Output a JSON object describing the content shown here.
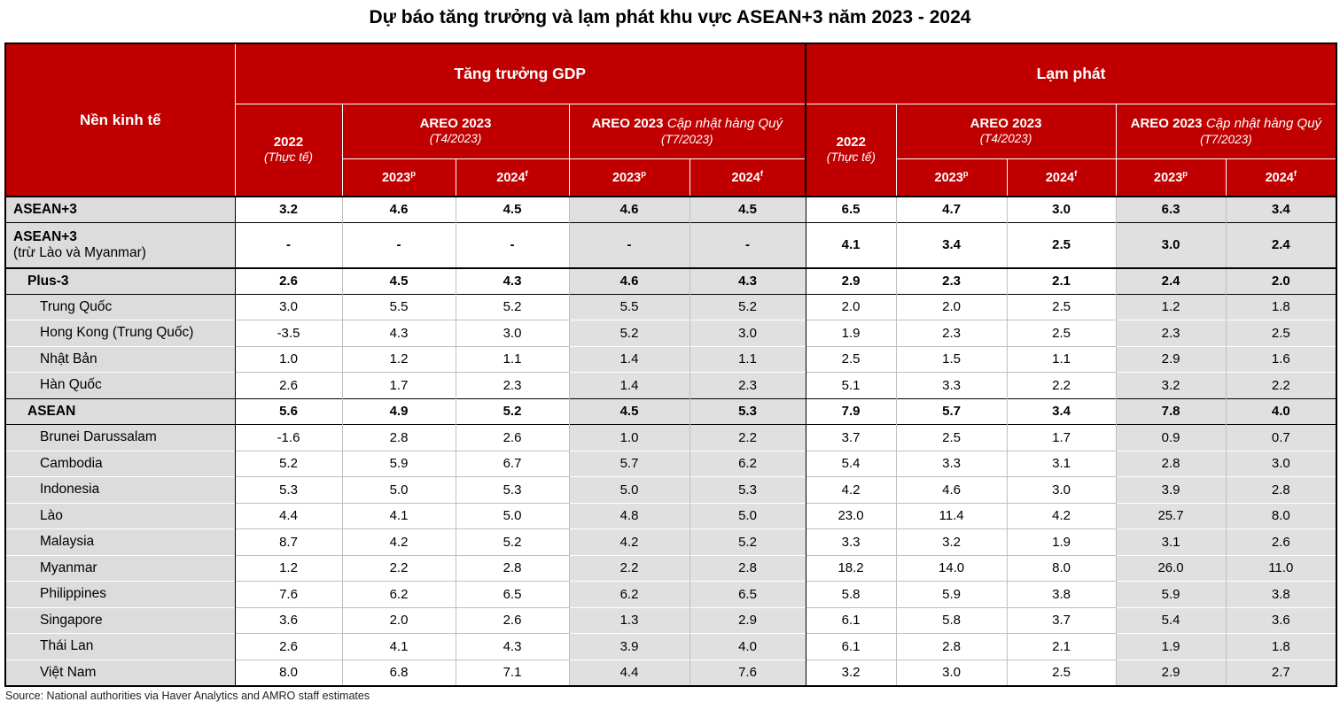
{
  "title": "Dự báo tăng trưởng và lạm phát khu vực ASEAN+3 năm 2023 - 2024",
  "footer": "Source: National authorities via Haver Analytics and AMRO staff estimates",
  "colors": {
    "header_red": "#C00000",
    "label_gray": "#DCDCDC",
    "shade_gray": "#E0E0E0"
  },
  "chart_data": {
    "type": "table",
    "title": "Dự báo tăng trưởng và lạm phát khu vực ASEAN+3 năm 2023 - 2024",
    "header": {
      "corner": "Nền kinh tế",
      "gdp_group": "Tăng trưởng GDP",
      "cpi_group": "Lạm phát",
      "col2022_year": "2022",
      "col2022_note": "(Thực tế)",
      "areo_label": "AREO 2023",
      "areo_note": "(T4/2023)",
      "update_label": "AREO 2023",
      "update_label_italic": "Cập nhật hàng Quý",
      "update_note": "(T7/2023)",
      "year2023": "2023",
      "year2023_sup": "p",
      "year2024": "2024",
      "year2024_sup": "f"
    },
    "subcolumns_per_group": [
      "2022 (Thực tế)",
      "AREO 2023 (T4/2023) 2023p",
      "AREO 2023 (T4/2023) 2024f",
      "AREO 2023 Cập nhật hàng Quý (T7/2023) 2023p",
      "AREO 2023 Cập nhật hàng Quý (T7/2023) 2024f"
    ],
    "rows": [
      {
        "label": "ASEAN+3",
        "label2": "",
        "style": "major",
        "indent": 0,
        "divider": "none",
        "gdp": [
          "3.2",
          "4.6",
          "4.5",
          "4.6",
          "4.5"
        ],
        "cpi": [
          "6.5",
          "4.7",
          "3.0",
          "6.3",
          "3.4"
        ]
      },
      {
        "label": "ASEAN+3",
        "label2": "(trừ Lào và Myanmar)",
        "style": "major",
        "indent": 0,
        "divider": "black",
        "gdp": [
          "-",
          "-",
          "-",
          "-",
          "-"
        ],
        "cpi": [
          "4.1",
          "3.4",
          "2.5",
          "3.0",
          "2.4"
        ]
      },
      {
        "label": "Plus-3",
        "label2": "",
        "style": "sub",
        "indent": 1,
        "divider": "thick",
        "gdp": [
          "2.6",
          "4.5",
          "4.3",
          "4.6",
          "4.3"
        ],
        "cpi": [
          "2.9",
          "2.3",
          "2.1",
          "2.4",
          "2.0"
        ]
      },
      {
        "label": "Trung Quốc",
        "label2": "",
        "style": "country",
        "indent": 2,
        "divider": "black",
        "gdp": [
          "3.0",
          "5.5",
          "5.2",
          "5.5",
          "5.2"
        ],
        "cpi": [
          "2.0",
          "2.0",
          "2.5",
          "1.2",
          "1.8"
        ]
      },
      {
        "label": "Hong Kong (Trung Quốc)",
        "label2": "",
        "style": "country",
        "indent": 2,
        "divider": "gray",
        "gdp": [
          "-3.5",
          "4.3",
          "3.0",
          "5.2",
          "3.0"
        ],
        "cpi": [
          "1.9",
          "2.3",
          "2.5",
          "2.3",
          "2.5"
        ]
      },
      {
        "label": "Nhật Bản",
        "label2": "",
        "style": "country",
        "indent": 2,
        "divider": "gray",
        "gdp": [
          "1.0",
          "1.2",
          "1.1",
          "1.4",
          "1.1"
        ],
        "cpi": [
          "2.5",
          "1.5",
          "1.1",
          "2.9",
          "1.6"
        ]
      },
      {
        "label": "Hàn Quốc",
        "label2": "",
        "style": "country",
        "indent": 2,
        "divider": "gray",
        "gdp": [
          "2.6",
          "1.7",
          "2.3",
          "1.4",
          "2.3"
        ],
        "cpi": [
          "5.1",
          "3.3",
          "2.2",
          "3.2",
          "2.2"
        ]
      },
      {
        "label": "ASEAN",
        "label2": "",
        "style": "sub",
        "indent": 1,
        "divider": "black",
        "gdp": [
          "5.6",
          "4.9",
          "5.2",
          "4.5",
          "5.3"
        ],
        "cpi": [
          "7.9",
          "5.7",
          "3.4",
          "7.8",
          "4.0"
        ]
      },
      {
        "label": "Brunei Darussalam",
        "label2": "",
        "style": "country",
        "indent": 2,
        "divider": "black",
        "gdp": [
          "-1.6",
          "2.8",
          "2.6",
          "1.0",
          "2.2"
        ],
        "cpi": [
          "3.7",
          "2.5",
          "1.7",
          "0.9",
          "0.7"
        ]
      },
      {
        "label": "Cambodia",
        "label2": "",
        "style": "country",
        "indent": 2,
        "divider": "gray",
        "gdp": [
          "5.2",
          "5.9",
          "6.7",
          "5.7",
          "6.2"
        ],
        "cpi": [
          "5.4",
          "3.3",
          "3.1",
          "2.8",
          "3.0"
        ]
      },
      {
        "label": "Indonesia",
        "label2": "",
        "style": "country",
        "indent": 2,
        "divider": "gray",
        "gdp": [
          "5.3",
          "5.0",
          "5.3",
          "5.0",
          "5.3"
        ],
        "cpi": [
          "4.2",
          "4.6",
          "3.0",
          "3.9",
          "2.8"
        ]
      },
      {
        "label": "Lào",
        "label2": "",
        "style": "country",
        "indent": 2,
        "divider": "gray",
        "gdp": [
          "4.4",
          "4.1",
          "5.0",
          "4.8",
          "5.0"
        ],
        "cpi": [
          "23.0",
          "11.4",
          "4.2",
          "25.7",
          "8.0"
        ]
      },
      {
        "label": "Malaysia",
        "label2": "",
        "style": "country",
        "indent": 2,
        "divider": "gray",
        "gdp": [
          "8.7",
          "4.2",
          "5.2",
          "4.2",
          "5.2"
        ],
        "cpi": [
          "3.3",
          "3.2",
          "1.9",
          "3.1",
          "2.6"
        ]
      },
      {
        "label": "Myanmar",
        "label2": "",
        "style": "country",
        "indent": 2,
        "divider": "gray",
        "gdp": [
          "1.2",
          "2.2",
          "2.8",
          "2.2",
          "2.8"
        ],
        "cpi": [
          "18.2",
          "14.0",
          "8.0",
          "26.0",
          "11.0"
        ]
      },
      {
        "label": "Philippines",
        "label2": "",
        "style": "country",
        "indent": 2,
        "divider": "gray",
        "gdp": [
          "7.6",
          "6.2",
          "6.5",
          "6.2",
          "6.5"
        ],
        "cpi": [
          "5.8",
          "5.9",
          "3.8",
          "5.9",
          "3.8"
        ]
      },
      {
        "label": "Singapore",
        "label2": "",
        "style": "country",
        "indent": 2,
        "divider": "gray",
        "gdp": [
          "3.6",
          "2.0",
          "2.6",
          "1.3",
          "2.9"
        ],
        "cpi": [
          "6.1",
          "5.8",
          "3.7",
          "5.4",
          "3.6"
        ]
      },
      {
        "label": "Thái Lan",
        "label2": "",
        "style": "country",
        "indent": 2,
        "divider": "gray",
        "gdp": [
          "2.6",
          "4.1",
          "4.3",
          "3.9",
          "4.0"
        ],
        "cpi": [
          "6.1",
          "2.8",
          "2.1",
          "1.9",
          "1.8"
        ]
      },
      {
        "label": "Việt Nam",
        "label2": "",
        "style": "country",
        "indent": 2,
        "divider": "gray",
        "gdp": [
          "8.0",
          "6.8",
          "7.1",
          "4.4",
          "7.6"
        ],
        "cpi": [
          "3.2",
          "3.0",
          "2.5",
          "2.9",
          "2.7"
        ]
      }
    ]
  }
}
